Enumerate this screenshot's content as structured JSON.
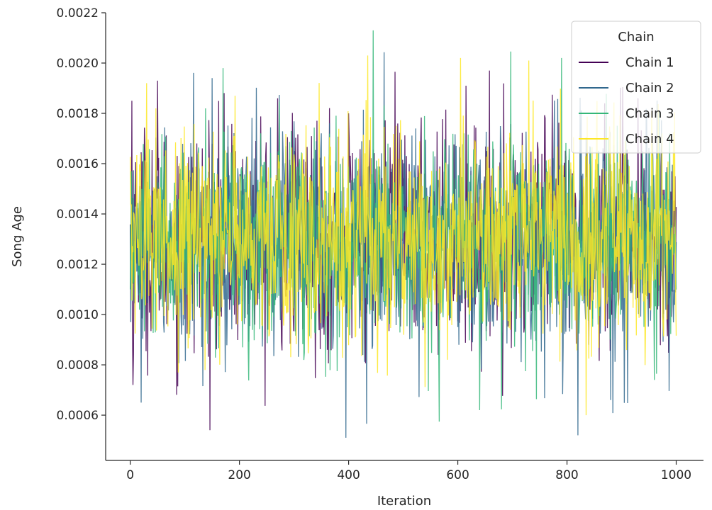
{
  "chart_data": {
    "type": "line",
    "xlabel": "Iteration",
    "ylabel": "Song Age",
    "xlim": [
      -45,
      1050
    ],
    "ylim": [
      0.00042,
      0.0022
    ],
    "x_ticks": [
      0,
      200,
      400,
      600,
      800,
      1000
    ],
    "y_ticks": [
      0.0006,
      0.0008,
      0.001,
      0.0012,
      0.0014,
      0.0016,
      0.0018,
      0.002,
      0.0022
    ],
    "n_iterations": 1000,
    "legend": {
      "title": "Chain",
      "position": "top-right"
    },
    "grid": false,
    "series": [
      {
        "name": "Chain 1",
        "color": "#440154",
        "mean": 0.00131,
        "sd": 0.00022,
        "extremes": [
          [
            3,
            0.00185
          ],
          [
            5,
            0.00072
          ],
          [
            50,
            0.00193
          ],
          [
            270,
            0.00186
          ],
          [
            400,
            0.0018
          ]
        ]
      },
      {
        "name": "Chain 2",
        "color": "#31688e",
        "mean": 0.00129,
        "sd": 0.00022,
        "extremes": [
          [
            20,
            0.00065
          ],
          [
            150,
            0.00194
          ],
          [
            395,
            0.00051
          ],
          [
            820,
            0.00052
          ],
          [
            880,
            0.00066
          ]
        ]
      },
      {
        "name": "Chain 3",
        "color": "#35b779",
        "mean": 0.0013,
        "sd": 0.00021,
        "extremes": [
          [
            170,
            0.00198
          ],
          [
            445,
            0.00213
          ],
          [
            640,
            0.00062
          ],
          [
            790,
            0.00202
          ],
          [
            960,
            0.00074
          ]
        ]
      },
      {
        "name": "Chain 4",
        "color": "#fde725",
        "mean": 0.00131,
        "sd": 0.00021,
        "extremes": [
          [
            30,
            0.00192
          ],
          [
            435,
            0.00203
          ],
          [
            605,
            0.00202
          ],
          [
            730,
            0.00201
          ],
          [
            835,
            0.0006
          ]
        ]
      }
    ]
  }
}
